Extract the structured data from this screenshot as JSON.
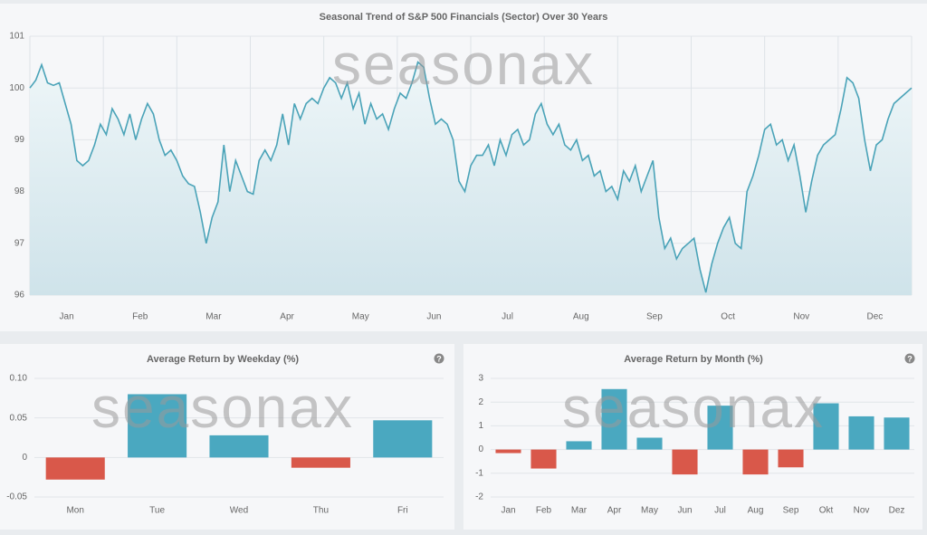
{
  "chart_data": [
    {
      "type": "line",
      "title": "Seasonal Trend of S&P 500 Financials (Sector) Over 30 Years",
      "watermark": "seasonax",
      "x_axis_labels": [
        "Jan",
        "Feb",
        "Mar",
        "Apr",
        "May",
        "Jun",
        "Jul",
        "Aug",
        "Sep",
        "Oct",
        "Nov",
        "Dec"
      ],
      "values": [
        100.0,
        100.15,
        100.45,
        100.1,
        100.05,
        100.1,
        99.7,
        99.3,
        98.6,
        98.5,
        98.6,
        98.9,
        99.3,
        99.1,
        99.6,
        99.4,
        99.1,
        99.5,
        99.0,
        99.4,
        99.7,
        99.5,
        99.0,
        98.7,
        98.8,
        98.6,
        98.3,
        98.15,
        98.1,
        97.6,
        97.0,
        97.5,
        97.8,
        98.9,
        98.0,
        98.6,
        98.3,
        98.0,
        97.95,
        98.6,
        98.8,
        98.6,
        98.9,
        99.5,
        98.9,
        99.7,
        99.4,
        99.7,
        99.8,
        99.7,
        100.0,
        100.2,
        100.1,
        99.8,
        100.1,
        99.6,
        99.9,
        99.3,
        99.7,
        99.4,
        99.5,
        99.2,
        99.6,
        99.9,
        99.8,
        100.1,
        100.5,
        100.4,
        99.8,
        99.3,
        99.4,
        99.3,
        99.0,
        98.2,
        98.0,
        98.5,
        98.7,
        98.7,
        98.9,
        98.5,
        99.0,
        98.7,
        99.1,
        99.2,
        98.9,
        99.0,
        99.5,
        99.7,
        99.3,
        99.1,
        99.3,
        98.9,
        98.8,
        99.0,
        98.6,
        98.7,
        98.3,
        98.4,
        98.0,
        98.1,
        97.85,
        98.4,
        98.2,
        98.5,
        98.0,
        98.3,
        98.6,
        97.5,
        96.9,
        97.1,
        96.7,
        96.9,
        97.0,
        97.1,
        96.5,
        96.05,
        96.6,
        97.0,
        97.3,
        97.5,
        97.0,
        96.9,
        98.0,
        98.3,
        98.7,
        99.2,
        99.3,
        98.9,
        99.0,
        98.6,
        98.9,
        98.3,
        97.6,
        98.2,
        98.7,
        98.9,
        99.0,
        99.1,
        99.6,
        100.2,
        100.1,
        99.8,
        99.0,
        98.4,
        98.9,
        99.0,
        99.4,
        99.7,
        99.8,
        99.9,
        100.0
      ],
      "color": "#4aa3b8",
      "ylim": [
        96,
        101
      ],
      "yticks": [
        96,
        97,
        98,
        99,
        100,
        101
      ],
      "grid": true
    },
    {
      "type": "bar",
      "title": "Average Return by Weekday (%)",
      "watermark": "seasonax",
      "help": "?",
      "categories": [
        "Mon",
        "Tue",
        "Wed",
        "Thu",
        "Fri"
      ],
      "values": [
        -0.028,
        0.08,
        0.028,
        -0.013,
        0.047
      ],
      "positive_color": "#4aa8c0",
      "negative_color": "#d9584a",
      "ylim": [
        -0.05,
        0.1
      ],
      "yticks": [
        -0.05,
        0,
        0.05,
        {
          "value": 0.1,
          "label": "0.10"
        }
      ],
      "grid": true
    },
    {
      "type": "bar",
      "title": "Average Return by Month (%)",
      "watermark": "seasonax",
      "help": "?",
      "categories": [
        "Jan",
        "Feb",
        "Mar",
        "Apr",
        "May",
        "Jun",
        "Jul",
        "Aug",
        "Sep",
        "Okt",
        "Nov",
        "Dez"
      ],
      "values": [
        -0.15,
        -0.8,
        0.35,
        2.55,
        0.5,
        -1.05,
        1.85,
        -1.05,
        -0.75,
        1.95,
        1.4,
        1.35
      ],
      "positive_color": "#4aa8c0",
      "negative_color": "#d9584a",
      "ylim": [
        -2,
        3
      ],
      "yticks": [
        -2,
        -1,
        0,
        1,
        2,
        3
      ],
      "grid": true
    }
  ]
}
